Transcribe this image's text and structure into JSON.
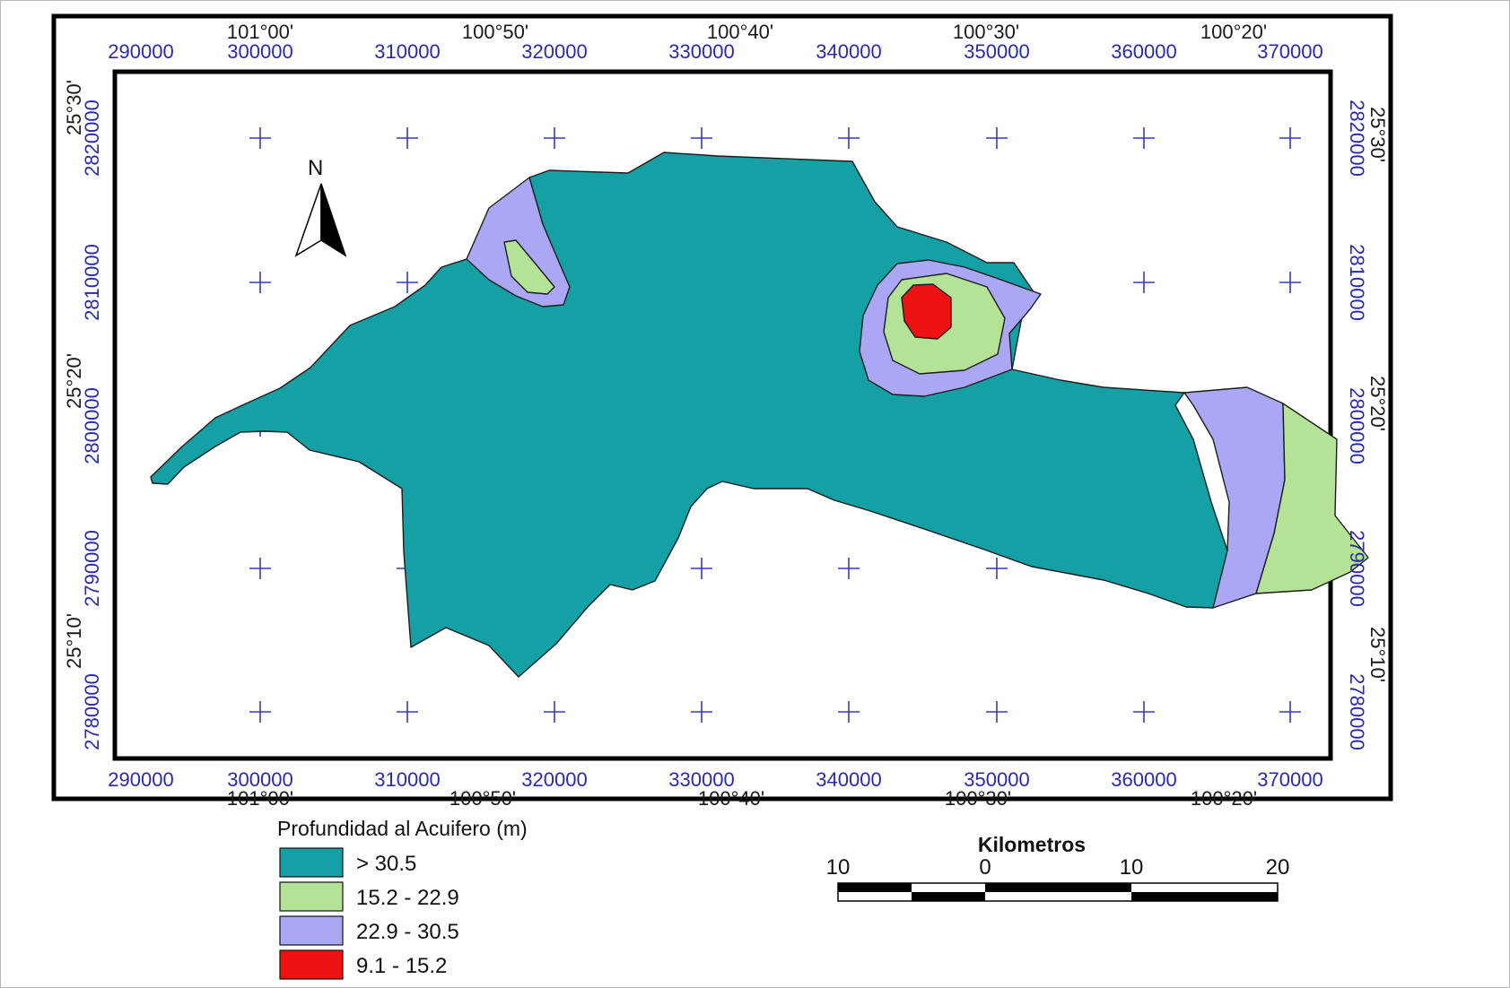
{
  "projected_x_ticks": [
    "290000",
    "300000",
    "310000",
    "320000",
    "330000",
    "340000",
    "350000",
    "360000",
    "370000"
  ],
  "projected_y_ticks": [
    "2820000",
    "2810000",
    "2800000",
    "2790000",
    "2780000"
  ],
  "longitude_ticks": [
    "101°00'",
    "100°50'",
    "100°40'",
    "100°30'",
    "100°20'"
  ],
  "latitude_ticks": [
    "25°30'",
    "25°20'",
    "25°10'"
  ],
  "north_arrow": {
    "label": "N",
    "icon": "north-arrow-icon"
  },
  "legend": {
    "title": "Profundidad al Acuifero (m)",
    "items": [
      {
        "label": "> 30.5",
        "color": "#14a0a4"
      },
      {
        "label": "15.2 - 22.9",
        "color": "#b4e296"
      },
      {
        "label": "22.9 - 30.5",
        "color": "#aaa8f4"
      },
      {
        "label": "9.1 - 15.2",
        "color": "#ee1212"
      }
    ]
  },
  "scale_bar": {
    "title": "Kilometros",
    "labels": [
      "10",
      "0",
      "10",
      "20"
    ]
  }
}
